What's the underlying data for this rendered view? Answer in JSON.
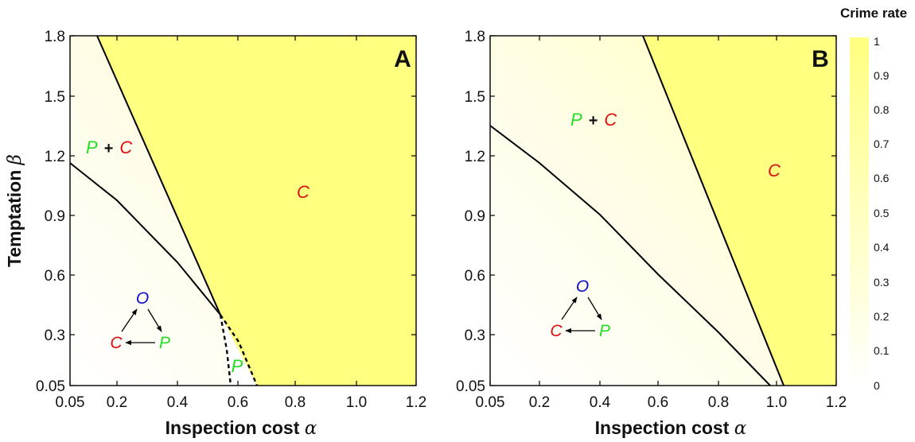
{
  "colorbar": {
    "title": "Crime rate",
    "ticks": [
      "0",
      "0.1",
      "0.2",
      "0.3",
      "0.4",
      "0.5",
      "0.6",
      "0.7",
      "0.8",
      "0.9",
      "1"
    ],
    "colors": {
      "low": "#ffffff",
      "high": "#ffff80"
    }
  },
  "ylabel_text": "Temptation",
  "ylabel_symbol": "β",
  "colors": {
    "P": "#22dd22",
    "C": "#dd1111",
    "O": "#1111cc",
    "line": "#000000"
  },
  "panels": [
    {
      "letter": "A",
      "xlabel_text": "Inspection cost",
      "xlabel_symbol": "α",
      "xticks": [
        "0.05",
        "0.2",
        "0.4",
        "0.6",
        "0.8",
        "1.0",
        "1.2"
      ],
      "yticks": [
        "0.05",
        "0.3",
        "0.6",
        "0.9",
        "1.2",
        "1.5",
        "1.8"
      ],
      "regions": {
        "mixed_P": "P",
        "mixed_plus": "+",
        "mixed_C": "C",
        "pure_C": "C",
        "pure_P": "P"
      },
      "cycle": {
        "top": "O",
        "left": "C",
        "right": "P"
      }
    },
    {
      "letter": "B",
      "xlabel_text": "Inspection cost",
      "xlabel_symbol": "α",
      "xticks": [
        "0.05",
        "0.2",
        "0.4",
        "0.6",
        "0.8",
        "1.0",
        "1.2"
      ],
      "yticks": [
        "0.05",
        "0.3",
        "0.6",
        "0.9",
        "1.2",
        "1.5",
        "1.8"
      ],
      "regions": {
        "mixed_P": "P",
        "mixed_plus": "+",
        "mixed_C": "C",
        "pure_C": "C"
      },
      "cycle": {
        "top": "O",
        "left": "C",
        "right": "P"
      }
    }
  ],
  "chart_data": [
    {
      "type": "heatmap",
      "title": "A",
      "xlabel": "Inspection cost α",
      "ylabel": "Temptation β",
      "xlim": [
        0.05,
        1.2
      ],
      "ylim": [
        0.05,
        1.8
      ],
      "xticks": [
        0.05,
        0.2,
        0.4,
        0.6,
        0.8,
        1.0,
        1.2
      ],
      "yticks": [
        0.05,
        0.3,
        0.6,
        0.9,
        1.2,
        1.5,
        1.8
      ],
      "colorbar": {
        "label": "Crime rate",
        "range": [
          0,
          1
        ]
      },
      "boundaries": [
        {
          "name": "P+C lower boundary",
          "style": "solid",
          "x": [
            0.05,
            0.2,
            0.4,
            0.545
          ],
          "y": [
            1.17,
            0.97,
            0.66,
            0.39
          ]
        },
        {
          "name": "C boundary",
          "style": "solid",
          "x": [
            0.13,
            0.545
          ],
          "y": [
            1.8,
            0.39
          ]
        },
        {
          "name": "P region left",
          "style": "dashed",
          "x": [
            0.545,
            0.565,
            0.575
          ],
          "y": [
            0.39,
            0.2,
            0.05
          ]
        },
        {
          "name": "P region right",
          "style": "dashed",
          "x": [
            0.545,
            0.6,
            0.665
          ],
          "y": [
            0.39,
            0.25,
            0.05
          ]
        }
      ],
      "region_labels": [
        {
          "text": "P + C",
          "x": 0.15,
          "y": 1.24
        },
        {
          "text": "C",
          "x": 0.8,
          "y": 1.01
        },
        {
          "text": "P",
          "x": 0.59,
          "y": 0.12
        }
      ]
    },
    {
      "type": "heatmap",
      "title": "B",
      "xlabel": "Inspection cost α",
      "ylabel": "Temptation β",
      "xlim": [
        0.05,
        1.2
      ],
      "ylim": [
        0.05,
        1.8
      ],
      "xticks": [
        0.05,
        0.2,
        0.4,
        0.6,
        0.8,
        1.0,
        1.2
      ],
      "yticks": [
        0.05,
        0.3,
        0.6,
        0.9,
        1.2,
        1.5,
        1.8
      ],
      "colorbar": {
        "label": "Crime rate",
        "range": [
          0,
          1
        ]
      },
      "boundaries": [
        {
          "name": "P+C lower boundary",
          "style": "solid",
          "x": [
            0.05,
            0.2,
            0.4,
            0.6,
            0.8,
            0.98
          ],
          "y": [
            1.35,
            1.15,
            0.9,
            0.6,
            0.3,
            0.05
          ]
        },
        {
          "name": "C boundary",
          "style": "solid",
          "x": [
            0.55,
            1.02
          ],
          "y": [
            1.8,
            0.05
          ]
        }
      ],
      "region_labels": [
        {
          "text": "P + C",
          "x": 0.4,
          "y": 1.43
        },
        {
          "text": "C",
          "x": 0.98,
          "y": 1.12
        }
      ]
    }
  ]
}
